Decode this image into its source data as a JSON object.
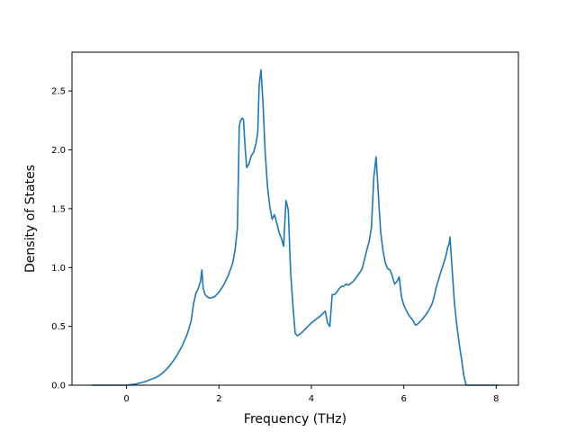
{
  "chart_data": {
    "type": "line",
    "title": "",
    "xlabel": "Frequency (THz)",
    "ylabel": "Density of States",
    "xlim": [
      -1.18,
      8.48
    ],
    "ylim": [
      0.0,
      2.83
    ],
    "xticks": [
      0,
      2,
      4,
      6,
      8
    ],
    "xtick_labels": [
      "0",
      "2",
      "4",
      "6",
      "8"
    ],
    "yticks": [
      0.0,
      0.5,
      1.0,
      1.5,
      2.0,
      2.5
    ],
    "ytick_labels": [
      "0.0",
      "0.5",
      "1.0",
      "1.5",
      "2.0",
      "2.5"
    ],
    "grid": false,
    "legend": false,
    "series": [
      {
        "color": "#1f77b4",
        "x": [
          -0.75,
          -0.4,
          0.0,
          0.1,
          0.2,
          0.3,
          0.4,
          0.5,
          0.6,
          0.7,
          0.8,
          0.9,
          1.0,
          1.1,
          1.2,
          1.3,
          1.35,
          1.4,
          1.45,
          1.5,
          1.55,
          1.6,
          1.63,
          1.66,
          1.7,
          1.75,
          1.8,
          1.9,
          2.0,
          2.1,
          2.2,
          2.3,
          2.35,
          2.4,
          2.44,
          2.46,
          2.5,
          2.53,
          2.57,
          2.6,
          2.65,
          2.7,
          2.75,
          2.8,
          2.84,
          2.87,
          2.91,
          2.95,
          3.0,
          3.05,
          3.1,
          3.15,
          3.2,
          3.25,
          3.3,
          3.35,
          3.4,
          3.45,
          3.5,
          3.55,
          3.6,
          3.65,
          3.7,
          3.8,
          3.9,
          4.0,
          4.1,
          4.2,
          4.3,
          4.35,
          4.4,
          4.45,
          4.5,
          4.55,
          4.6,
          4.65,
          4.7,
          4.75,
          4.8,
          4.9,
          5.0,
          5.1,
          5.15,
          5.2,
          5.25,
          5.3,
          5.35,
          5.4,
          5.43,
          5.46,
          5.5,
          5.55,
          5.6,
          5.65,
          5.7,
          5.75,
          5.8,
          5.85,
          5.9,
          5.95,
          6.0,
          6.1,
          6.2,
          6.25,
          6.3,
          6.4,
          6.5,
          6.6,
          6.65,
          6.7,
          6.8,
          6.9,
          6.95,
          6.98,
          7.0,
          7.05,
          7.1,
          7.15,
          7.2,
          7.25,
          7.3,
          7.35,
          7.5,
          7.8,
          8.05
        ],
        "values": [
          0.0,
          0.0,
          0.0,
          0.005,
          0.01,
          0.02,
          0.03,
          0.045,
          0.06,
          0.08,
          0.11,
          0.15,
          0.2,
          0.26,
          0.33,
          0.42,
          0.48,
          0.55,
          0.69,
          0.78,
          0.82,
          0.88,
          0.98,
          0.82,
          0.77,
          0.75,
          0.74,
          0.75,
          0.79,
          0.85,
          0.93,
          1.04,
          1.15,
          1.34,
          2.2,
          2.24,
          2.27,
          2.26,
          2.0,
          1.85,
          1.88,
          1.95,
          1.98,
          2.05,
          2.15,
          2.55,
          2.68,
          2.42,
          1.98,
          1.69,
          1.52,
          1.41,
          1.45,
          1.38,
          1.3,
          1.25,
          1.18,
          1.57,
          1.49,
          0.97,
          0.68,
          0.44,
          0.42,
          0.45,
          0.49,
          0.53,
          0.56,
          0.59,
          0.63,
          0.53,
          0.5,
          0.77,
          0.77,
          0.79,
          0.82,
          0.84,
          0.84,
          0.86,
          0.85,
          0.88,
          0.93,
          0.99,
          1.07,
          1.15,
          1.22,
          1.34,
          1.76,
          1.94,
          1.75,
          1.55,
          1.3,
          1.14,
          1.04,
          0.99,
          0.98,
          0.93,
          0.86,
          0.88,
          0.92,
          0.75,
          0.68,
          0.6,
          0.55,
          0.51,
          0.52,
          0.56,
          0.61,
          0.68,
          0.74,
          0.83,
          0.96,
          1.08,
          1.17,
          1.2,
          1.26,
          0.96,
          0.68,
          0.5,
          0.35,
          0.22,
          0.08,
          0.0,
          0.0,
          0.0,
          0.0
        ]
      }
    ]
  }
}
